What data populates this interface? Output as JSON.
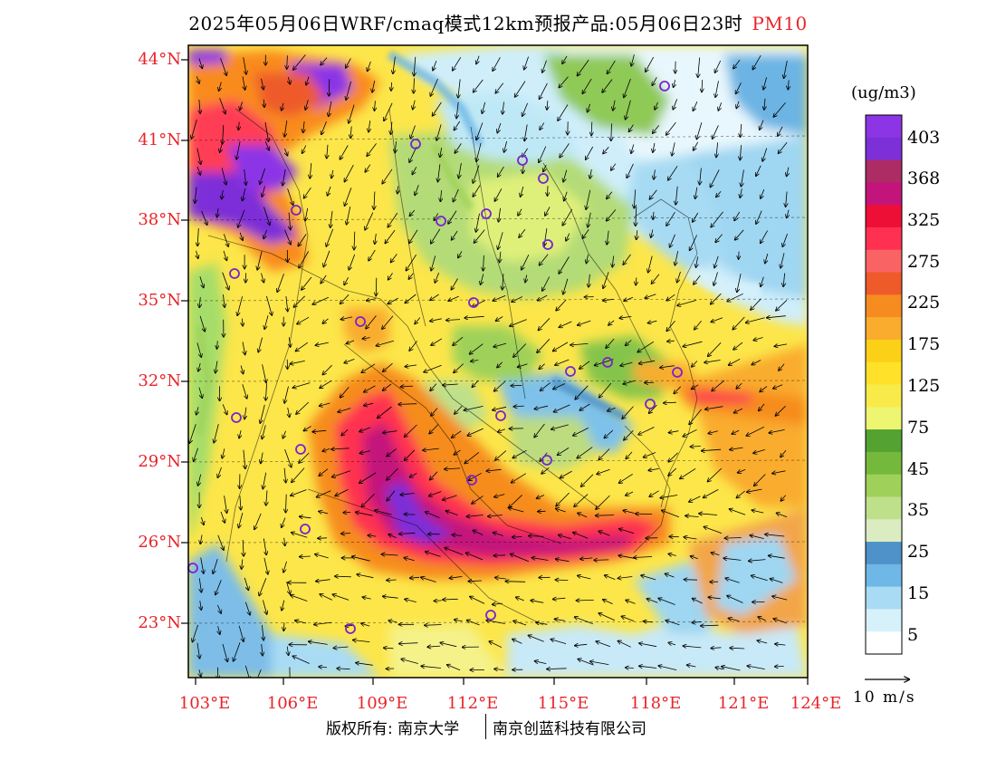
{
  "title": {
    "main": "2025年05月06日WRF/cmaq模式12km预报产品:05月06日23时",
    "product": "PM10"
  },
  "axes": {
    "lat_labels": [
      "44°N",
      "41°N",
      "38°N",
      "35°N",
      "32°N",
      "29°N",
      "26°N",
      "23°N"
    ],
    "lon_labels": [
      "103°E",
      "106°E",
      "109°E",
      "112°E",
      "115°E",
      "118°E",
      "121°E",
      "124°E"
    ]
  },
  "legend": {
    "unit": "(ug/m3)",
    "bins": [
      {
        "color": "#ffffff"
      },
      {
        "color": "#d7f1fb"
      },
      {
        "color": "#a9dcf4"
      },
      {
        "color": "#6fb7e6"
      },
      {
        "color": "#4e92c9"
      },
      {
        "color": "#dcecc2"
      },
      {
        "color": "#bfe08a"
      },
      {
        "color": "#9fd15a"
      },
      {
        "color": "#74b93b"
      },
      {
        "color": "#53a232"
      },
      {
        "color": "#eef570"
      },
      {
        "color": "#f8ea48"
      },
      {
        "color": "#ffe12a"
      },
      {
        "color": "#fcd016"
      },
      {
        "color": "#f9ac2e"
      },
      {
        "color": "#f68c1f"
      },
      {
        "color": "#ee5a2a"
      },
      {
        "color": "#fa6364"
      },
      {
        "color": "#ff3050"
      },
      {
        "color": "#ee0f37"
      },
      {
        "color": "#c3147c"
      },
      {
        "color": "#ad2c64"
      },
      {
        "color": "#7d2fd8"
      },
      {
        "color": "#8b35e6"
      }
    ],
    "labels": [
      "403",
      "368",
      "325",
      "275",
      "225",
      "175",
      "125",
      "75",
      "45",
      "35",
      "25",
      "15",
      "5"
    ]
  },
  "wind_scale": {
    "label": "10 m/s"
  },
  "copyright": {
    "left": "版权所有: 南京大学",
    "right": "南京创蓝科技有限公司"
  }
}
